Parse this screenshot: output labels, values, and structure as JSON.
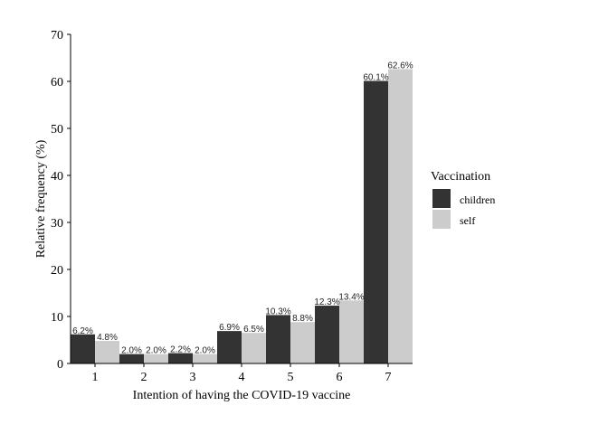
{
  "chart_data": {
    "type": "bar",
    "categories": [
      "1",
      "2",
      "3",
      "4",
      "5",
      "6",
      "7"
    ],
    "series": [
      {
        "name": "children",
        "values": [
          6.2,
          2.0,
          2.2,
          6.9,
          10.3,
          12.3,
          60.1
        ],
        "labels": [
          "6.2%",
          "2.0%",
          "2.2%",
          "6.9%",
          "10.3%",
          "12.3%",
          "60.1%"
        ],
        "color": "#333333"
      },
      {
        "name": "self",
        "values": [
          4.8,
          2.0,
          2.0,
          6.5,
          8.8,
          13.4,
          62.6
        ],
        "labels": [
          "4.8%",
          "2.0%",
          "2.0%",
          "6.5%",
          "8.8%",
          "13.4%",
          "62.6%"
        ],
        "color": "#cccccc"
      }
    ],
    "xlabel": "Intention of having the COVID-19 vaccine",
    "ylabel": "Relative frequency (%)",
    "ylim": [
      0,
      70
    ],
    "yticks": [
      "0",
      "10",
      "20",
      "30",
      "40",
      "50",
      "60",
      "70"
    ],
    "legend_title": "Vaccination",
    "legend_position": "right",
    "grid": false
  }
}
